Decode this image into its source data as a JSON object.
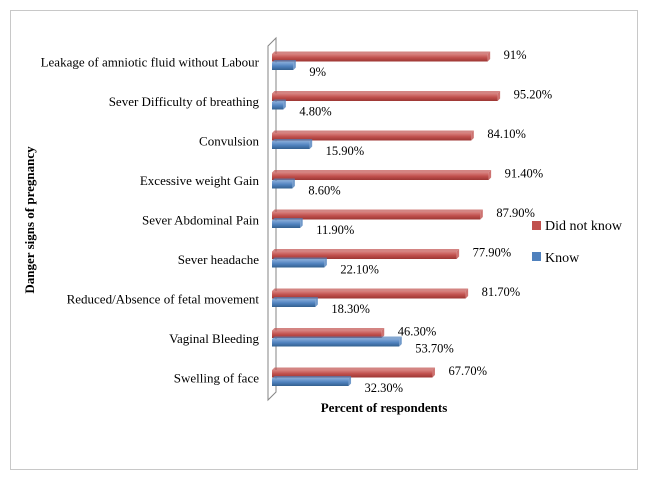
{
  "chart_data": {
    "type": "bar",
    "orientation": "horizontal",
    "xlabel": "Percent of respondents",
    "ylabel": "Danger signs of pregnancy",
    "xlim": [
      0,
      100
    ],
    "grid": false,
    "legend_position": "right",
    "categories": [
      "Leakage of amniotic fluid without Labour",
      "Sever Difficulty of breathing",
      "Convulsion",
      "Excessive weight Gain",
      "Sever Abdominal Pain",
      "Sever headache",
      "Reduced/Absence of fetal movement",
      "Vaginal Bleeding",
      "Swelling of face"
    ],
    "series": [
      {
        "name": "Did not know",
        "color": "#c0504d",
        "values": [
          91,
          95.2,
          84.1,
          91.4,
          87.9,
          77.9,
          81.7,
          46.3,
          67.7
        ],
        "labels": [
          "91%",
          "95.20%",
          "84.10%",
          "91.40%",
          "87.90%",
          "77.90%",
          "81.70%",
          "46.30%",
          "67.70%"
        ]
      },
      {
        "name": "Know",
        "color": "#4f81bd",
        "values": [
          9,
          4.8,
          15.9,
          8.6,
          11.9,
          22.1,
          18.3,
          53.7,
          32.3
        ],
        "labels": [
          "9%",
          "4.80%",
          "15.90%",
          "8.60%",
          "11.90%",
          "22.10%",
          "18.30%",
          "53.70%",
          "32.30%"
        ]
      }
    ],
    "legend": [
      {
        "name": "Did not know",
        "color": "#c0504d"
      },
      {
        "name": "Know",
        "color": "#4f81bd"
      }
    ]
  }
}
